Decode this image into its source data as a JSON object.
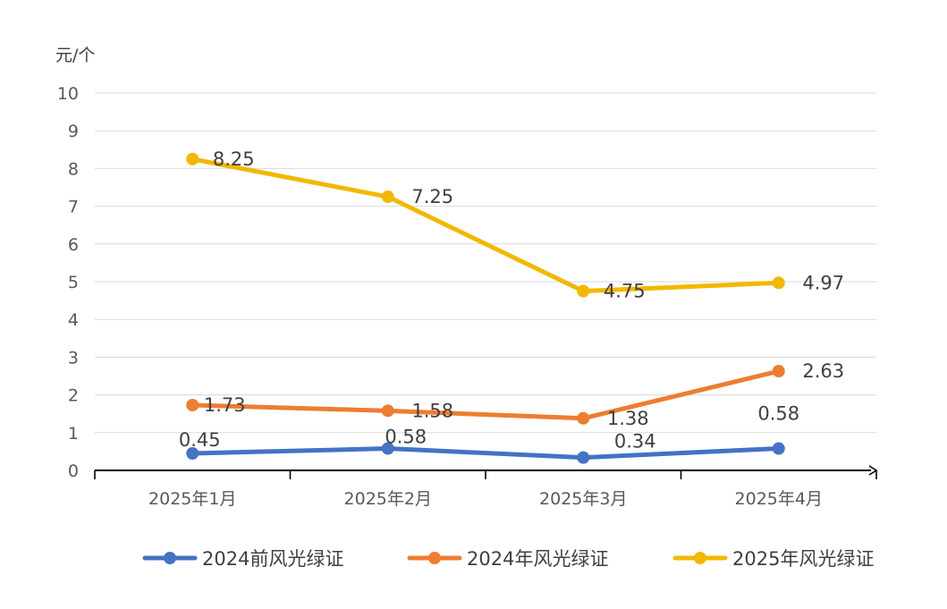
{
  "chart_data": {
    "type": "line",
    "y_unit": "元/个",
    "categories": [
      "2025年1月",
      "2025年2月",
      "2025年3月",
      "2025年4月"
    ],
    "ylim": [
      0,
      10
    ],
    "yticks": [
      "0",
      "1",
      "2",
      "3",
      "4",
      "5",
      "6",
      "7",
      "8",
      "9",
      "10"
    ],
    "grid": true,
    "legend_position": "bottom",
    "series": [
      {
        "name": "2024前风光绿证",
        "color": "#4472C4",
        "values": [
          0.45,
          0.58,
          0.34,
          0.58
        ],
        "labels": [
          "0.45",
          "0.58",
          "0.34",
          "0.58"
        ]
      },
      {
        "name": "2024年风光绿证",
        "color": "#ED7D31",
        "values": [
          1.73,
          1.58,
          1.38,
          2.63
        ],
        "labels": [
          "1.73",
          "1.58",
          "1.38",
          "2.63"
        ]
      },
      {
        "name": "2025年风光绿证",
        "color": "#F2B800",
        "values": [
          8.25,
          7.25,
          4.75,
          4.97
        ],
        "labels": [
          "8.25",
          "7.25",
          "4.75",
          "4.97"
        ]
      }
    ]
  }
}
